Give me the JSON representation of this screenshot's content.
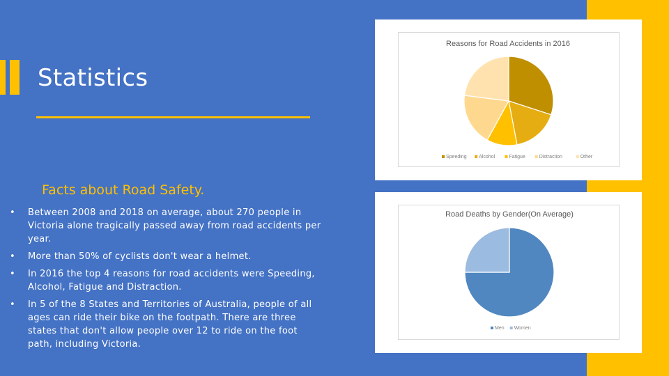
{
  "slide": {
    "title": "Statistics",
    "subtitle": "Facts about Road Safety.",
    "bullet_symbol": "•",
    "bullets": [
      "Between 2008 and 2018 on average, about 270 people in Victoria alone tragically passed away from road accidents per year.",
      "More than 50% of cyclists don't wear a helmet.",
      "In 2016 the top 4 reasons for road accidents were Speeding, Alcohol, Fatigue and Distraction.",
      "In 5 of the 8 States and Territories of Australia, people of all ages can ride their bike on the footpath. There are three states that don't allow people over 12 to ride on the foot path, including Victoria."
    ],
    "colors": {
      "background": "#4472c4",
      "accent": "#ffc000",
      "text": "#ffffff"
    }
  },
  "chart_data": [
    {
      "type": "pie",
      "title": "Reasons for Road Accidents in 2016",
      "categories": [
        "Speeding",
        "Alcohol",
        "Fatigue",
        "Distraction",
        "Other"
      ],
      "values": [
        30,
        17,
        11,
        19,
        23
      ],
      "colors": [
        "#bf8f00",
        "#e6ad12",
        "#ffc000",
        "#ffd890",
        "#ffe2ae"
      ],
      "legend": "bottom"
    },
    {
      "type": "pie",
      "title": "Road Deaths by Gender(On Average)",
      "categories": [
        "Men",
        "Women"
      ],
      "values": [
        75,
        25
      ],
      "colors": [
        "#5087c0",
        "#9cbbe0"
      ],
      "legend": "bottom"
    }
  ]
}
